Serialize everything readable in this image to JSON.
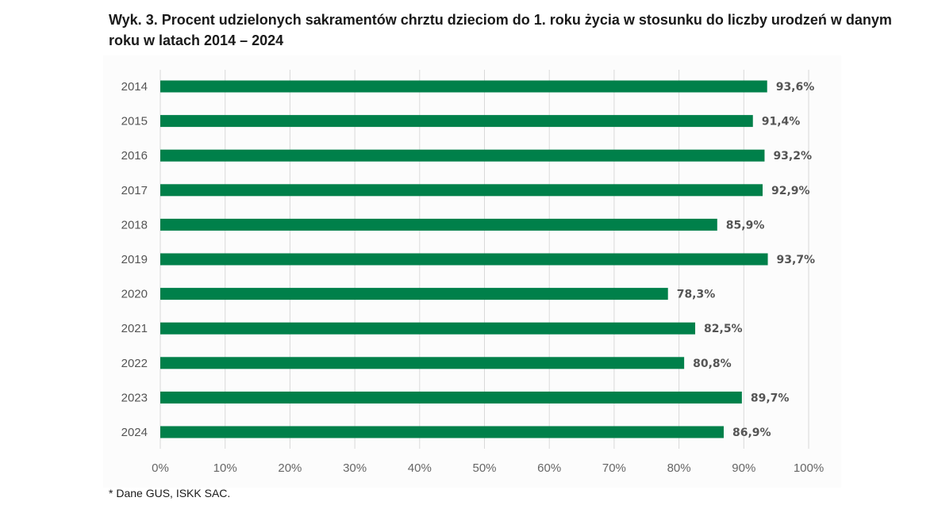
{
  "title": "Wyk. 3. Procent udzielonych sakramentów chrztu dzieciom do 1. roku życia w stosunku do liczby urodzeń w danym roku w latach 2014 – 2024",
  "footnote": "* Dane GUS, ISKK SAC.",
  "chart_data": {
    "type": "bar",
    "orientation": "horizontal",
    "title": "Wyk. 3. Procent udzielonych sakramentów chrztu dzieciom do 1. roku życia w stosunku do liczby urodzeń w danym roku w latach 2014 – 2024",
    "categories": [
      "2014",
      "2015",
      "2016",
      "2017",
      "2018",
      "2019",
      "2020",
      "2021",
      "2022",
      "2023",
      "2024"
    ],
    "values": [
      93.6,
      91.4,
      93.2,
      92.9,
      85.9,
      93.7,
      78.3,
      82.5,
      80.8,
      89.7,
      86.9
    ],
    "data_labels": [
      "93,6%",
      "91,4%",
      "93,2%",
      "92,9%",
      "85,9%",
      "93,7%",
      "78,3%",
      "82,5%",
      "80,8%",
      "89,7%",
      "86,9%"
    ],
    "xlim": [
      0,
      100
    ],
    "x_ticks": [
      0,
      10,
      20,
      30,
      40,
      50,
      60,
      70,
      80,
      90,
      100
    ],
    "x_tick_labels": [
      "0%",
      "10%",
      "20%",
      "30%",
      "40%",
      "50%",
      "60%",
      "70%",
      "80%",
      "90%",
      "100%"
    ],
    "grid": true,
    "legend": "none",
    "bar_color": "#00804a",
    "grid_color": "#d9d9d9"
  }
}
